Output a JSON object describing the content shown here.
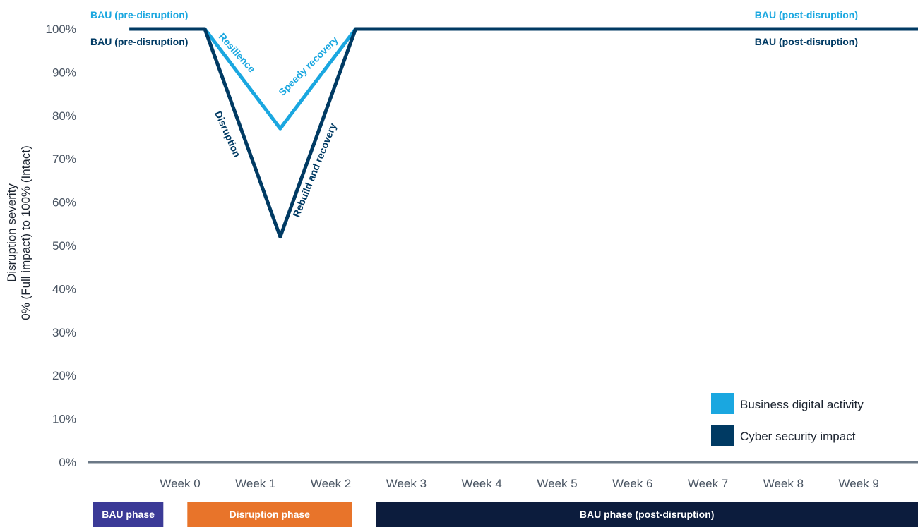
{
  "chart_data": {
    "type": "line",
    "ylabel_line1": "Disruption severity",
    "ylabel_line2": "0% (Full impact) to 100% (Intact)",
    "ylim": [
      0,
      100
    ],
    "y_ticks": [
      "0%",
      "10%",
      "20%",
      "30%",
      "40%",
      "50%",
      "60%",
      "70%",
      "80%",
      "90%",
      "100%"
    ],
    "categories": [
      "Week 0",
      "Week 1",
      "Week 2",
      "Week 3",
      "Week 4",
      "Week 5",
      "Week 6",
      "Week 7",
      "Week 8",
      "Week 9"
    ],
    "series": [
      {
        "name": "Business digital activity",
        "color": "#1aa7e0",
        "points": [
          [
            -1,
            100
          ],
          [
            0,
            100
          ],
          [
            1,
            77
          ],
          [
            2,
            100
          ],
          [
            9.7,
            100
          ]
        ]
      },
      {
        "name": "Cyber security impact",
        "color": "#003a63",
        "points": [
          [
            -1,
            100
          ],
          [
            0,
            100
          ],
          [
            1,
            52
          ],
          [
            2,
            100
          ],
          [
            9.7,
            100
          ]
        ]
      }
    ],
    "annotations": [
      {
        "text": "BAU (pre-disruption)",
        "series": 0
      },
      {
        "text": "BAU (pre-disruption)",
        "series": 1
      },
      {
        "text": "BAU (post-disruption)",
        "series": 0
      },
      {
        "text": "BAU (post-disruption)",
        "series": 1
      },
      {
        "text": "Resilience",
        "series": 0
      },
      {
        "text": "Speedy recovery",
        "series": 0
      },
      {
        "text": "Disruption",
        "series": 1
      },
      {
        "text": "Rebuild and recovery",
        "series": 1
      }
    ],
    "legend": {
      "placement": "bottom-right",
      "items": [
        {
          "label": "Business digital activity",
          "color": "#1aa7e0"
        },
        {
          "label": "Cyber security impact",
          "color": "#003a63"
        }
      ]
    },
    "phases": [
      {
        "label": "BAU phase",
        "color": "#3b3a97",
        "from": -1.5,
        "to": -0.25
      },
      {
        "label": "Disruption phase",
        "color": "#e8742a",
        "from": -0.25,
        "to": 2.25
      },
      {
        "label": "BAU phase (post-disruption)",
        "color": "#0c1c3d",
        "from": 2.25,
        "to": 10.5
      }
    ],
    "grid": false,
    "axis_color": "#6b7886"
  }
}
